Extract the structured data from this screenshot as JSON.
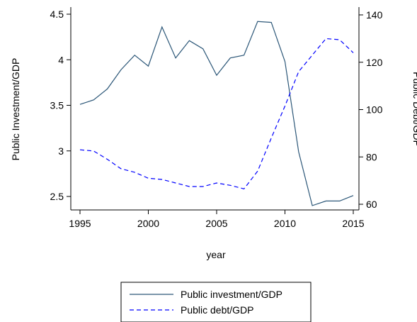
{
  "chart_data": {
    "type": "line",
    "xlabel": "year",
    "ylabel_left": "Public Investment/GDP",
    "ylabel_right": "Public Debt/GDP",
    "x": [
      1995,
      1996,
      1997,
      1998,
      1999,
      2000,
      2001,
      2002,
      2003,
      2004,
      2005,
      2006,
      2007,
      2008,
      2009,
      2010,
      2011,
      2012,
      2013,
      2014,
      2015
    ],
    "x_ticks": [
      "1995",
      "2000",
      "2005",
      "2010",
      "2015"
    ],
    "y_left_ticks": [
      "2.5",
      "3",
      "3.5",
      "4",
      "4.5"
    ],
    "y_right_ticks": [
      "60",
      "80",
      "100",
      "120",
      "140"
    ],
    "xlim": [
      1995,
      2015
    ],
    "ylim_left": [
      2.35,
      4.5
    ],
    "ylim_right": [
      58,
      140
    ],
    "grid": false,
    "legend_position": "bottom",
    "series": [
      {
        "name": "Public investment/GDP",
        "axis": "left",
        "style": "solid",
        "color": "#2c5778",
        "values": [
          3.51,
          3.56,
          3.68,
          3.89,
          4.05,
          3.93,
          4.36,
          4.02,
          4.21,
          4.12,
          3.83,
          4.02,
          4.05,
          4.42,
          4.41,
          3.98,
          2.99,
          2.4,
          2.45,
          2.45,
          2.51
        ]
      },
      {
        "name": "Public debt/GDP",
        "axis": "right",
        "style": "dashed",
        "color": "#0000ff",
        "values": [
          83,
          82.5,
          79,
          75,
          73.5,
          71,
          70.5,
          69,
          67.5,
          67.5,
          69,
          68,
          66.5,
          74,
          88,
          101.5,
          116,
          123,
          130,
          129.5,
          124
        ]
      }
    ]
  }
}
